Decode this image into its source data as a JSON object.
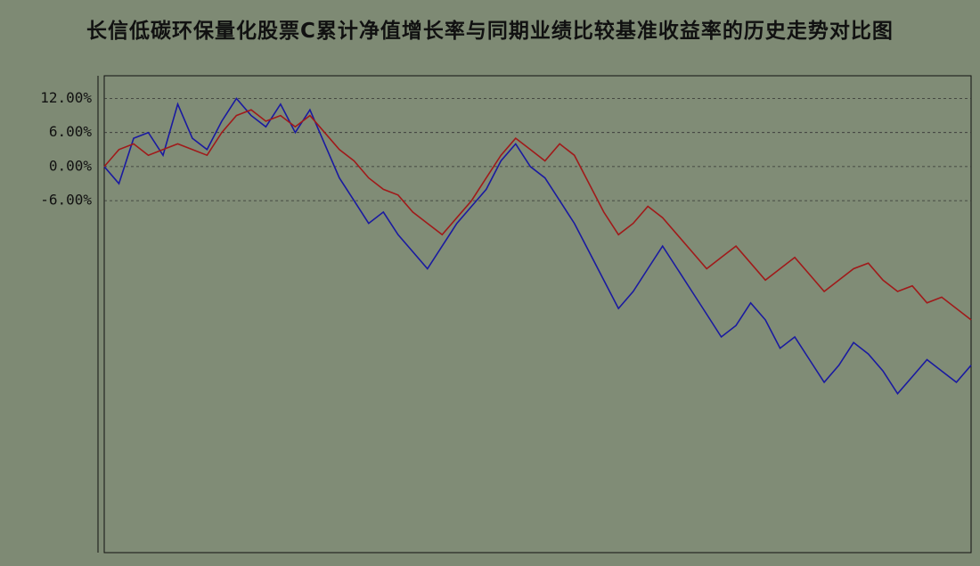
{
  "chart_data": {
    "type": "line",
    "title": "长信低碳环保量化股票C累计净值增长率与同期业绩比较基准收益率的历史走势对比图",
    "categories": [
      null,
      null,
      null,
      null,
      null,
      null,
      null,
      null,
      null,
      null,
      null,
      null,
      null,
      null,
      null,
      null,
      null,
      null,
      null,
      null,
      null,
      null,
      null,
      null,
      null,
      null,
      null,
      null,
      null,
      null,
      null,
      null,
      null,
      null,
      null,
      null,
      null,
      null,
      null,
      null,
      null,
      null,
      null,
      null,
      null,
      null,
      null,
      null,
      null,
      null,
      null,
      null,
      null,
      null,
      null,
      null,
      null,
      null,
      null,
      null
    ],
    "series": [
      {
        "color": "#1a1aa0",
        "values": [
          0,
          -3,
          5,
          6,
          2,
          11,
          5,
          3,
          8,
          12,
          9,
          7,
          11,
          6,
          10,
          4,
          -2,
          -6,
          -10,
          -8,
          -12,
          -15,
          -18,
          -14,
          -10,
          -7,
          -4,
          1,
          4,
          0,
          -2,
          -6,
          -10,
          -15,
          -20,
          -25,
          -22,
          -18,
          -14,
          -18,
          -22,
          -26,
          -30,
          -28,
          -24,
          -27,
          -32,
          -30,
          -34,
          -38,
          -35,
          -31,
          -33,
          -36,
          -40,
          -37,
          -34,
          -36,
          -38,
          -35
        ]
      },
      {
        "color": "#a01a1a",
        "values": [
          0,
          3,
          4,
          2,
          3,
          4,
          3,
          2,
          6,
          9,
          10,
          8,
          9,
          7,
          9,
          6,
          3,
          1,
          -2,
          -4,
          -5,
          -8,
          -10,
          -12,
          -9,
          -6,
          -2,
          2,
          5,
          3,
          1,
          4,
          2,
          -3,
          -8,
          -12,
          -10,
          -7,
          -9,
          -12,
          -15,
          -18,
          -16,
          -14,
          -17,
          -20,
          -18,
          -16,
          -19,
          -22,
          -20,
          -18,
          -17,
          -20,
          -22,
          -21,
          -24,
          -23,
          -25,
          -27
        ]
      }
    ],
    "ylim": [
      -68,
      16
    ],
    "yticks": [
      {
        "value": 12,
        "label": "12.00%"
      },
      {
        "value": 6,
        "label": "6.00%"
      },
      {
        "value": 0,
        "label": "0.00%"
      },
      {
        "value": -6,
        "label": "-6.00%"
      }
    ],
    "grid": true
  }
}
